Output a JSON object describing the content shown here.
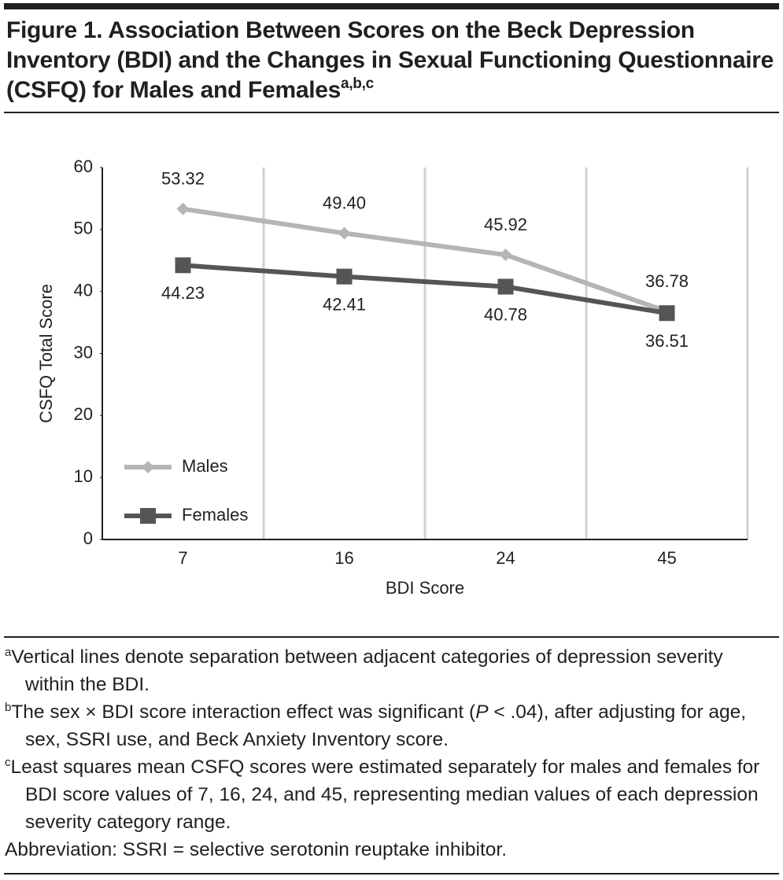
{
  "chart_data": {
    "type": "line",
    "title": "Figure 1. Association Between Scores on the Beck Depression Inventory (BDI) and the Changes in Sexual Functioning Questionnaire (CSFQ) for Males and Females",
    "title_superscript": "a,b,c",
    "x_label": "BDI Score",
    "y_label": "CSFQ Total Score",
    "categories": [
      "7",
      "16",
      "24",
      "45"
    ],
    "series": [
      {
        "name": "Males",
        "color": "#b5b5b5",
        "marker": "diamond",
        "values": [
          53.32,
          49.4,
          45.92,
          36.78
        ],
        "value_labels": [
          "53.32",
          "49.40",
          "45.92",
          "36.78"
        ]
      },
      {
        "name": "Females",
        "color": "#555555",
        "marker": "square",
        "values": [
          44.23,
          42.41,
          40.78,
          36.51
        ]
      }
    ],
    "ylim": [
      0,
      60
    ],
    "yticks": [
      0,
      10,
      20,
      30,
      40,
      50,
      60
    ],
    "category_separators": true,
    "legend": "lower left"
  },
  "footnotes": [
    {
      "marker": "a",
      "text": "Vertical lines denote separation between adjacent categories of depression severity within the BDI."
    },
    {
      "marker": "b",
      "text": "The sex × BDI score interaction effect was significant (",
      "italic": "P",
      "text_after": " < .04), after adjusting for age, sex, SSRI use, and Beck Anxiety Inventory score."
    },
    {
      "marker": "c",
      "text": "Least squares mean CSFQ scores were estimated separately for males and females for BDI score values of 7, 16, 24, and 45, representing median values of each depression severity category range."
    }
  ],
  "abbreviation": "Abbreviation: SSRI = selective serotonin reuptake inhibitor."
}
